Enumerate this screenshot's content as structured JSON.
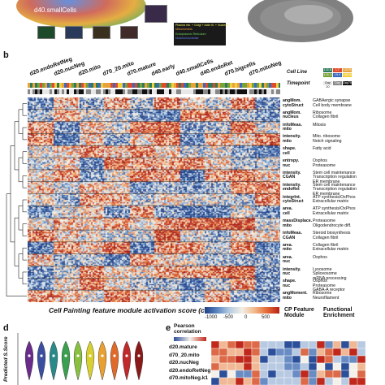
{
  "panel_labels": {
    "b": "b",
    "d": "d",
    "e": "e"
  },
  "panel_a": {
    "cluster_label": "d40.smallCells",
    "legend_items": [
      {
        "text": "Plasma mb. + Golgi + Actin fil. + Nucleoli",
        "color": "#f4f45a"
      },
      {
        "text": "Mitochondria",
        "color": "#f0a040"
      },
      {
        "text": "Endoplasmic Reticulum",
        "color": "#66d25a"
      },
      {
        "text": "Nucleus/nucleolar",
        "color": "#5c7ef0"
      }
    ]
  },
  "heatmap": {
    "column_groups": [
      "d20.endoRetNeg",
      "d20.nucNeg",
      "d20.mito",
      "d70_20.mito",
      "d70.mature",
      "d40.early",
      "d40.smallCells",
      "d40.endoRet",
      "d70.bigcells",
      "d70.mitoNeg"
    ],
    "cell_line_title": "Cell Line",
    "timepoint_title": "Timepoint",
    "cell_lines": [
      {
        "name": "L11.6",
        "color": "#2c7a5a"
      },
      {
        "name": "L7",
        "color": "#e04a2c"
      },
      {
        "name": "L22.6",
        "color": "#e8a23a"
      },
      {
        "name": "L11.1",
        "color": "#7aa23a"
      },
      {
        "name": "L9.4",
        "color": "#3a6ac0"
      },
      {
        "name": "L62.4",
        "color": "#f0d040"
      }
    ],
    "timepoints": [
      {
        "name": "Day 20",
        "color": "#e8e8e8"
      },
      {
        "name": "Day 40",
        "color": "#888888"
      },
      {
        "name": "Day70",
        "color": "#111111"
      }
    ],
    "modules": [
      {
        "feature": "angMom. cytoStruct",
        "function": "GABAergic synapse\nCell body membrane"
      },
      {
        "feature": "angMom. nucleus",
        "function": "Ribosome\nCollagen fibril"
      },
      {
        "feature": "infoMeas. mito",
        "function": "Mitosis"
      },
      {
        "feature": "intensity. mito",
        "function": "Mito. ribosome\nNotch signaling"
      },
      {
        "feature": "shape. cell",
        "function": "Fatty acid"
      },
      {
        "feature": "entropy. nuc",
        "function": "Oxphos\nProteasome"
      },
      {
        "feature": "intensity. CGAN",
        "function": "Stem cell maintenance\nTranscription regulation\nER membrane"
      },
      {
        "feature": "intensity. endoRet",
        "function": "Stem cell maintenance\nTranscription regulation\nER membrane"
      },
      {
        "feature": "integrInt. cytoStruct",
        "function": "ATP synthesis/OxPhos\nExtracellular matrix"
      },
      {
        "feature": "area. cell",
        "function": "ATP synthesis/OxPhos\nExtracellular matrix"
      },
      {
        "feature": "massDisplace. mito",
        "function": "Proteasome\nOligodendrocyte diff."
      },
      {
        "feature": "infoMeas. CGAN",
        "function": "Steroid biosynthesis\nCollagen fibril"
      },
      {
        "feature": "area. mito",
        "function": "Collagen fibril\nExtracellular matrix"
      },
      {
        "feature": "area. nuc",
        "function": "Oxphos"
      },
      {
        "feature": "intensity. nuc",
        "function": "Lysosome\nSpliceosome\nmRNA processing"
      },
      {
        "feature": "shape. nuc",
        "function": "Oxphos\nProteasome\nGABA-A receptor"
      },
      {
        "feature": "angMoment. mito",
        "function": "Ribosome\nNeurofilament"
      }
    ],
    "caption": "Cell Painting feature module activation score (centered)",
    "colorbar_ticks": [
      "-1000",
      "-500",
      "0",
      "500"
    ],
    "cp_module_title": "CP Feature\nModule",
    "func_title": "Functional\nEnrichment"
  },
  "panel_d": {
    "ylabel": "Predicted S.Score"
  },
  "panel_e": {
    "legend_title": "Pearson\ncorrelation",
    "rows": [
      "d20.mature",
      "d70_20.mito",
      "d20.nucNeg",
      "d20.endoRetNeg",
      "d70.mitoNeg.k1"
    ]
  }
}
